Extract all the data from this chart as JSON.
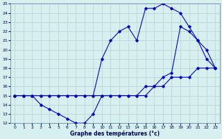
{
  "title": "Graphe des températures (°c)",
  "bg_color": "#d6f0f0",
  "grid_color": "#b0d0d0",
  "line_color": "#0000cc",
  "xlim": [
    -0.5,
    23.5
  ],
  "ylim": [
    12,
    25
  ],
  "xticks": [
    0,
    1,
    2,
    3,
    4,
    5,
    6,
    7,
    8,
    9,
    10,
    11,
    12,
    13,
    14,
    15,
    16,
    17,
    18,
    19,
    20,
    21,
    22,
    23
  ],
  "yticks": [
    12,
    13,
    14,
    15,
    16,
    17,
    18,
    19,
    20,
    21,
    22,
    23,
    24,
    25
  ],
  "line1_x": [
    0,
    1,
    2,
    3,
    4,
    5,
    6,
    7,
    8,
    9,
    10,
    11,
    12,
    13,
    14,
    15,
    16,
    17,
    18,
    19,
    20,
    21,
    22,
    23
  ],
  "line1_y": [
    15,
    15,
    15,
    14,
    13.5,
    13,
    12.5,
    12,
    12,
    13,
    15,
    15,
    15,
    15,
    15,
    15,
    16,
    16,
    17,
    17,
    17,
    18,
    18,
    18
  ],
  "line2_x": [
    0,
    1,
    2,
    3,
    4,
    5,
    6,
    7,
    8,
    9,
    10,
    11,
    12,
    13,
    14,
    15,
    16,
    17,
    18,
    19,
    20,
    21,
    22,
    23
  ],
  "line2_y": [
    15,
    15,
    15,
    15,
    15,
    15,
    15,
    15,
    15,
    15,
    19,
    21,
    22,
    22.5,
    21,
    24.5,
    24.5,
    25,
    24.5,
    24,
    22.5,
    21,
    19,
    18
  ],
  "line3_x": [
    0,
    1,
    2,
    3,
    4,
    5,
    6,
    7,
    8,
    9,
    10,
    11,
    12,
    13,
    14,
    15,
    16,
    17,
    18,
    19,
    20,
    21,
    22,
    23
  ],
  "line3_y": [
    15,
    15,
    15,
    15,
    15,
    15,
    15,
    15,
    15,
    15,
    15,
    15,
    15,
    15,
    15,
    16,
    16,
    17,
    17.5,
    22.5,
    22,
    21,
    20,
    18
  ]
}
